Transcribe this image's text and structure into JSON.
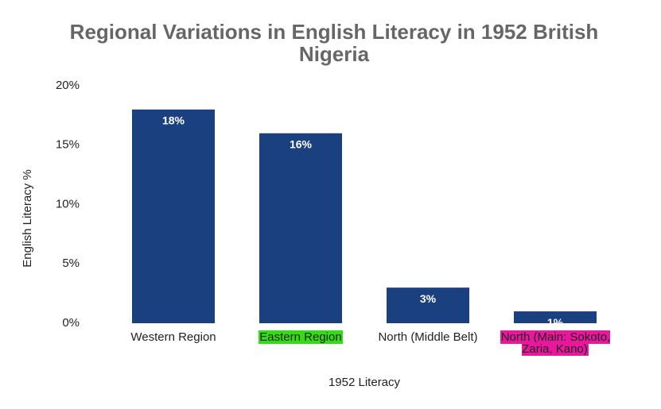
{
  "chart_data": {
    "type": "bar",
    "title": "Regional Variations in English Literacy in 1952 British Nigeria",
    "x_label": "1952 Literacy",
    "y_label": "English Literacy %",
    "categories": [
      "Western Region",
      "Eastern Region",
      "North (Middle Belt)",
      "North (Main: Sokoto, Zaria, Kano)"
    ],
    "values": [
      18,
      16,
      3,
      1
    ],
    "value_labels": [
      "18%",
      "16%",
      "3%",
      "1%"
    ],
    "color": "#1a4080",
    "category_highlights": [
      null,
      "#33dd11",
      null,
      "#e8179c"
    ],
    "ylim": [
      0,
      20
    ],
    "yticks": [
      {
        "value": 0,
        "label": "0%"
      },
      {
        "value": 5,
        "label": "5%"
      },
      {
        "value": 10,
        "label": "10%"
      },
      {
        "value": 15,
        "label": "15%"
      },
      {
        "value": 20,
        "label": "20%"
      }
    ],
    "grid": false
  }
}
